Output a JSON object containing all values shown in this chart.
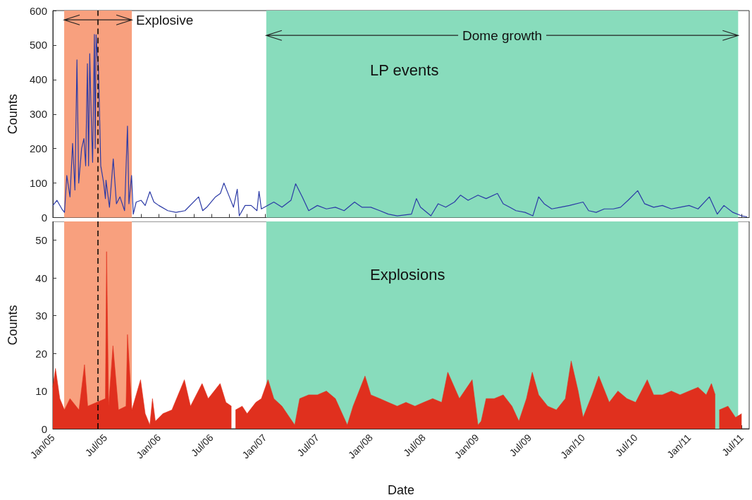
{
  "chart_data": [
    {
      "type": "line",
      "ylabel": "Counts",
      "tick_labels": "y",
      "grid": false,
      "marker": "none",
      "line_style": "solid",
      "annotations": [
        "LP events"
      ],
      "xlim": [
        "2005-01-01",
        "2011-07-27"
      ],
      "ylim": [
        0,
        600
      ],
      "yticks": [
        0,
        100,
        200,
        300,
        400,
        500,
        600
      ],
      "xticks": [
        {
          "value": "2005-01",
          "label": null
        },
        {
          "value": "2005-03",
          "label": null
        },
        {
          "value": "2005-05",
          "label": null
        },
        {
          "value": "2005-07",
          "label": null
        },
        {
          "value": "2005-09",
          "label": null
        },
        {
          "value": "2005-11",
          "label": null
        },
        {
          "value": "2006-01",
          "label": null
        },
        {
          "value": "2006-03",
          "label": null
        },
        {
          "value": "2006-05",
          "label": null
        },
        {
          "value": "2006-07",
          "label": null
        },
        {
          "value": "2006-09",
          "label": null
        },
        {
          "value": "2006-11",
          "label": null
        },
        {
          "value": "2007-01",
          "label": null
        },
        {
          "value": "2007-03",
          "label": null
        },
        {
          "value": "2007-05",
          "label": null
        },
        {
          "value": "2007-07",
          "label": null
        },
        {
          "value": "2007-09",
          "label": null
        },
        {
          "value": "2007-11",
          "label": null
        },
        {
          "value": "2008-01",
          "label": null
        },
        {
          "value": "2008-03",
          "label": null
        },
        {
          "value": "2008-05",
          "label": null
        },
        {
          "value": "2008-07",
          "label": null
        },
        {
          "value": "2008-09",
          "label": null
        },
        {
          "value": "2008-11",
          "label": null
        },
        {
          "value": "2009-01",
          "label": null
        },
        {
          "value": "2009-03",
          "label": null
        },
        {
          "value": "2009-05",
          "label": null
        },
        {
          "value": "2009-07",
          "label": null
        },
        {
          "value": "2009-09",
          "label": null
        },
        {
          "value": "2009-11",
          "label": null
        },
        {
          "value": "2010-01",
          "label": null
        },
        {
          "value": "2010-03",
          "label": null
        },
        {
          "value": "2010-05",
          "label": null
        },
        {
          "value": "2010-07",
          "label": null
        },
        {
          "value": "2010-09",
          "label": null
        },
        {
          "value": "2010-11",
          "label": null
        },
        {
          "value": "2011-01",
          "label": null
        },
        {
          "value": "2011-03",
          "label": null
        },
        {
          "value": "2011-05",
          "label": null
        },
        {
          "value": "2011-07",
          "label": null
        }
      ],
      "bands": [
        {
          "axis": "x",
          "from": "2005-02-09",
          "to": "2005-09-30",
          "label": "Explosive",
          "color": "#f8a07e"
        },
        {
          "axis": "x",
          "from": "2007-01-06",
          "to": "2011-06-19",
          "label": "Dome growth",
          "color": "#88dcbc"
        }
      ],
      "ref_lines": [
        {
          "axis": "x",
          "value": "2005-06-05",
          "color": "#000000",
          "line_style": "dashed"
        }
      ],
      "x": [
        "2005-01-01",
        "2005-01-15",
        "2005-02-01",
        "2005-02-10",
        "2005-02-18",
        "2005-03-01",
        "2005-03-10",
        "2005-03-18",
        "2005-03-25",
        "2005-03-31",
        "2005-04-10",
        "2005-04-18",
        "2005-04-24",
        "2005-04-30",
        "2005-05-04",
        "2005-05-08",
        "2005-05-13",
        "2005-05-18",
        "2005-05-24",
        "2005-05-27",
        "2005-05-30",
        "2005-06-03",
        "2005-06-07",
        "2005-06-15",
        "2005-06-25",
        "2005-07-01",
        "2005-07-03",
        "2005-07-15",
        "2005-07-28",
        "2005-08-08",
        "2005-08-20",
        "2005-09-05",
        "2005-09-15",
        "2005-09-20",
        "2005-09-29",
        "2005-10-05",
        "2005-10-15",
        "2005-11-01",
        "2005-11-15",
        "2005-12-01",
        "2005-12-15",
        "2006-01-01",
        "2006-02-01",
        "2006-03-01",
        "2006-04-01",
        "2006-05-18",
        "2006-06-01",
        "2006-06-15",
        "2006-07-15",
        "2006-08-01",
        "2006-08-13",
        "2006-09-01",
        "2006-09-15",
        "2006-09-28",
        "2006-10-05",
        "2006-10-25",
        "2006-11-15",
        "2006-12-05",
        "2006-12-12",
        "2006-12-20",
        "2007-02-01",
        "2007-03-01",
        "2007-04-01",
        "2007-04-17",
        "2007-05-10",
        "2007-06-01",
        "2007-07-01",
        "2007-08-01",
        "2007-09-01",
        "2007-10-01",
        "2007-11-06",
        "2007-12-01",
        "2008-01-01",
        "2008-02-01",
        "2008-03-01",
        "2008-04-01",
        "2008-05-20",
        "2008-06-06",
        "2008-06-20",
        "2008-07-26",
        "2008-08-20",
        "2008-09-15",
        "2008-10-15",
        "2008-11-05",
        "2008-12-01",
        "2009-01-04",
        "2009-02-01",
        "2009-03-12",
        "2009-04-01",
        "2009-04-23",
        "2009-05-15",
        "2009-06-15",
        "2009-07-12",
        "2009-08-01",
        "2009-08-20",
        "2009-09-15",
        "2009-10-15",
        "2009-11-15",
        "2010-01-01",
        "2010-01-20",
        "2010-02-15",
        "2010-03-15",
        "2010-04-15",
        "2010-05-10",
        "2010-06-05",
        "2010-07-08",
        "2010-08-01",
        "2010-09-01",
        "2010-10-01",
        "2010-11-01",
        "2010-12-01",
        "2011-01-01",
        "2011-02-01",
        "2011-03-12",
        "2011-04-08",
        "2011-05-01",
        "2011-06-01",
        "2011-07-01",
        "2011-07-20"
      ],
      "series": [
        {
          "color": "#2b3aa6",
          "values": [
            35,
            50,
            25,
            15,
            122,
            60,
            215,
            80,
            457,
            100,
            200,
            229,
            150,
            446,
            150,
            475,
            296,
            160,
            531,
            200,
            530,
            470,
            436,
            150,
            100,
            55,
            108,
            30,
            170,
            40,
            60,
            20,
            265,
            40,
            122,
            10,
            45,
            50,
            35,
            75,
            45,
            35,
            20,
            15,
            20,
            60,
            20,
            30,
            60,
            70,
            100,
            60,
            30,
            82,
            5,
            35,
            35,
            20,
            76,
            25,
            45,
            30,
            50,
            98,
            60,
            20,
            35,
            25,
            30,
            20,
            45,
            30,
            30,
            20,
            10,
            5,
            10,
            55,
            30,
            5,
            40,
            30,
            45,
            65,
            50,
            65,
            55,
            70,
            40,
            30,
            20,
            15,
            5,
            60,
            40,
            25,
            30,
            35,
            45,
            20,
            15,
            25,
            25,
            30,
            50,
            78,
            40,
            30,
            35,
            25,
            30,
            35,
            25,
            60,
            10,
            35,
            15,
            5,
            2
          ]
        }
      ]
    },
    {
      "type": "area",
      "ylabel": "Counts",
      "xlabel": "Date",
      "grid": false,
      "marker": "none",
      "annotations": [
        "Explosions"
      ],
      "xlim": [
        "2005-01-01",
        "2011-07-27"
      ],
      "ylim": [
        0,
        55
      ],
      "yticks": [
        0,
        10,
        20,
        30,
        40,
        50
      ],
      "xticks": [
        {
          "value": "2005-01",
          "label": "Jan/05"
        },
        {
          "value": "2005-03",
          "label": null
        },
        {
          "value": "2005-05",
          "label": null
        },
        {
          "value": "2005-07",
          "label": "Jul/05"
        },
        {
          "value": "2005-09",
          "label": null
        },
        {
          "value": "2005-11",
          "label": null
        },
        {
          "value": "2006-01",
          "label": "Jan/06"
        },
        {
          "value": "2006-03",
          "label": null
        },
        {
          "value": "2006-05",
          "label": null
        },
        {
          "value": "2006-07",
          "label": "Jul/06"
        },
        {
          "value": "2006-09",
          "label": null
        },
        {
          "value": "2006-11",
          "label": null
        },
        {
          "value": "2007-01",
          "label": "Jan/07"
        },
        {
          "value": "2007-03",
          "label": null
        },
        {
          "value": "2007-05",
          "label": null
        },
        {
          "value": "2007-07",
          "label": "Jul/07"
        },
        {
          "value": "2007-09",
          "label": null
        },
        {
          "value": "2007-11",
          "label": null
        },
        {
          "value": "2008-01",
          "label": "Jan/08"
        },
        {
          "value": "2008-03",
          "label": null
        },
        {
          "value": "2008-05",
          "label": null
        },
        {
          "value": "2008-07",
          "label": "Jul/08"
        },
        {
          "value": "2008-09",
          "label": null
        },
        {
          "value": "2008-11",
          "label": null
        },
        {
          "value": "2009-01",
          "label": "Jan/09"
        },
        {
          "value": "2009-03",
          "label": null
        },
        {
          "value": "2009-05",
          "label": null
        },
        {
          "value": "2009-07",
          "label": "Jul/09"
        },
        {
          "value": "2009-09",
          "label": null
        },
        {
          "value": "2009-11",
          "label": null
        },
        {
          "value": "2010-01",
          "label": "Jan/10"
        },
        {
          "value": "2010-03",
          "label": null
        },
        {
          "value": "2010-05",
          "label": null
        },
        {
          "value": "2010-07",
          "label": "Jul/10"
        },
        {
          "value": "2010-09",
          "label": null
        },
        {
          "value": "2010-11",
          "label": null
        },
        {
          "value": "2011-01",
          "label": "Jan/11"
        },
        {
          "value": "2011-03",
          "label": null
        },
        {
          "value": "2011-05",
          "label": null
        },
        {
          "value": "2011-07",
          "label": "Jul/11"
        }
      ],
      "bands": [
        {
          "axis": "x",
          "from": "2005-02-09",
          "to": "2005-09-30",
          "color": "#f8a07e"
        },
        {
          "axis": "x",
          "from": "2007-01-06",
          "to": "2011-06-19",
          "color": "#88dcbc"
        }
      ],
      "ref_lines": [
        {
          "axis": "x",
          "value": "2005-06-05",
          "color": "#000000",
          "line_style": "dashed"
        }
      ],
      "x": [
        "2005-01-01",
        "2005-01-10",
        "2005-01-25",
        "2005-02-10",
        "2005-03-01",
        "2005-04-01",
        "2005-04-20",
        "2005-05-01",
        "2005-06-01",
        "2005-07-01",
        "2005-07-05",
        "2005-07-12",
        "2005-07-27",
        "2005-08-15",
        "2005-09-10",
        "2005-09-15",
        "2005-09-30",
        "2005-10-30",
        "2005-11-15",
        "2005-12-01",
        "2005-12-10",
        "2005-12-20",
        "2006-01-15",
        "2006-02-15",
        "2006-03-30",
        "2006-04-20",
        "2006-05-30",
        "2006-06-20",
        "2006-07-31",
        "2006-08-20",
        "2006-09-08",
        "2006-09-15",
        "2006-09-22",
        "2006-10-15",
        "2006-11-01",
        "2006-12-01",
        "2006-12-20",
        "2007-01-12",
        "2007-02-01",
        "2007-03-01",
        "2007-04-14",
        "2007-05-01",
        "2007-06-01",
        "2007-07-01",
        "2007-08-01",
        "2007-09-01",
        "2007-10-12",
        "2007-11-01",
        "2007-12-12",
        "2008-01-01",
        "2008-02-01",
        "2008-03-01",
        "2008-04-01",
        "2008-05-01",
        "2008-06-01",
        "2008-07-01",
        "2008-08-01",
        "2008-09-01",
        "2008-09-22",
        "2008-11-01",
        "2008-12-15",
        "2009-01-04",
        "2009-01-15",
        "2009-02-01",
        "2009-03-01",
        "2009-04-01",
        "2009-05-01",
        "2009-05-25",
        "2009-06-20",
        "2009-07-10",
        "2009-08-01",
        "2009-09-01",
        "2009-10-01",
        "2009-11-01",
        "2009-11-21",
        "2009-12-15",
        "2010-01-01",
        "2010-02-01",
        "2010-02-24",
        "2010-04-01",
        "2010-05-01",
        "2010-06-01",
        "2010-07-01",
        "2010-08-10",
        "2010-09-01",
        "2010-10-01",
        "2010-11-01",
        "2010-12-01",
        "2011-01-01",
        "2011-02-01",
        "2011-03-01",
        "2011-03-19",
        "2011-04-01",
        "2011-04-08",
        "2011-04-15",
        "2011-05-15",
        "2011-06-10",
        "2011-07-01"
      ],
      "series": [
        {
          "color": "#e0301e",
          "values": [
            11,
            16,
            8,
            5,
            8,
            5,
            17,
            6,
            7,
            8,
            47,
            6,
            22,
            5,
            6,
            25,
            5,
            13,
            4,
            1,
            8,
            2,
            4,
            5,
            13,
            6,
            12,
            8,
            12,
            7,
            6,
            null,
            5,
            6,
            4,
            7,
            8,
            13,
            8,
            6,
            1,
            8,
            9,
            9,
            10,
            8,
            1,
            6,
            14,
            9,
            8,
            7,
            6,
            7,
            6,
            7,
            8,
            7,
            15,
            8,
            13,
            1,
            2,
            8,
            8,
            9,
            6,
            2,
            8,
            15,
            9,
            6,
            5,
            8,
            18,
            10,
            3,
            9,
            14,
            7,
            10,
            8,
            7,
            13,
            9,
            9,
            10,
            9,
            10,
            11,
            9,
            12,
            9,
            null,
            5,
            6,
            3,
            4
          ]
        }
      ]
    }
  ]
}
